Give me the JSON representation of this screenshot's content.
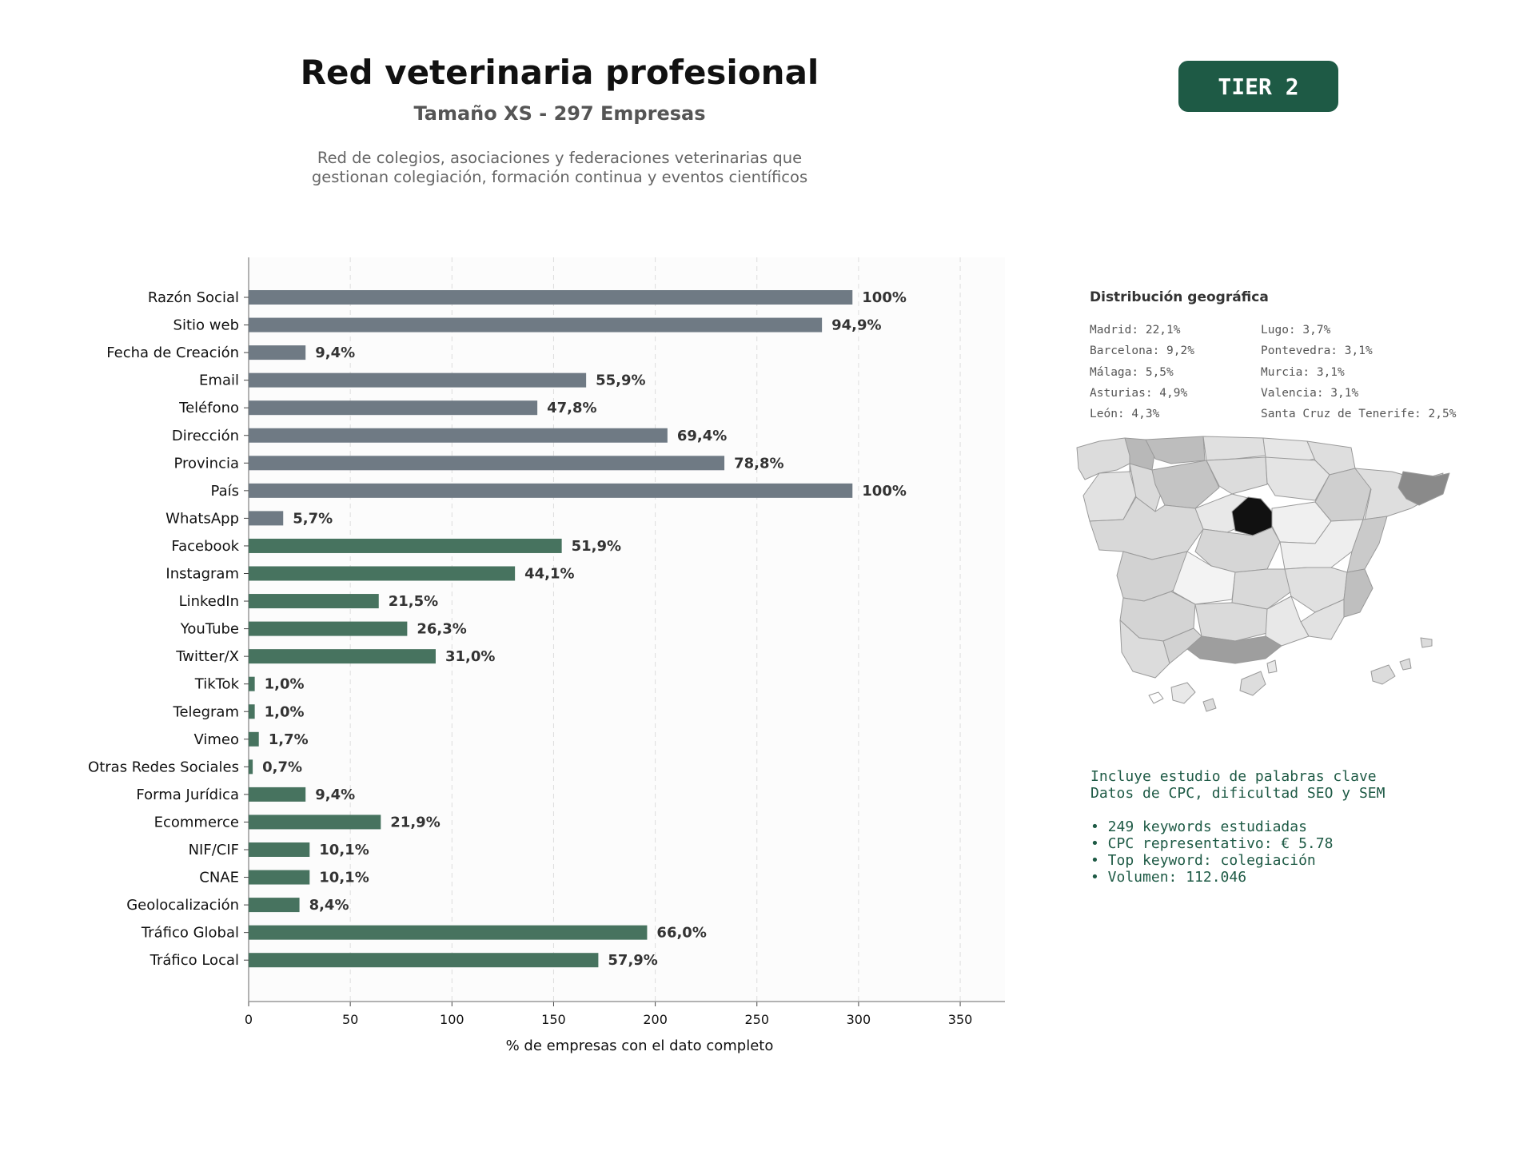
{
  "header": {
    "title": "Red veterinaria profesional",
    "subtitle": "Tamaño XS - 297 Empresas",
    "description_line1": "Red de colegios, asociaciones y federaciones veterinarias que",
    "description_line2": "gestionan colegiación, formación continua y eventos científicos",
    "tier_badge": "TIER 2"
  },
  "colors": {
    "gray_bar": "#6f7a84",
    "green_bar": "#47735f",
    "accent": "#1e5a45"
  },
  "chart_data": {
    "type": "bar",
    "orientation": "horizontal",
    "xlabel": "% de empresas con el dato completo",
    "xlim": [
      0,
      372
    ],
    "xticks": [
      0,
      50,
      100,
      150,
      200,
      250,
      300,
      350
    ],
    "grid": "vertical dashed",
    "categories": [
      "Razón Social",
      "Sitio web",
      "Fecha de Creación",
      "Email",
      "Teléfono",
      "Dirección",
      "Provincia",
      "País",
      "WhatsApp",
      "Facebook",
      "Instagram",
      "LinkedIn",
      "YouTube",
      "Twitter/X",
      "TikTok",
      "Telegram",
      "Vimeo",
      "Otras Redes Sociales",
      "Forma Jurídica",
      "Ecommerce",
      "NIF/CIF",
      "CNAE",
      "Geolocalización",
      "Tráfico Global",
      "Tráfico Local"
    ],
    "values": [
      297,
      282,
      28,
      166,
      142,
      206,
      234,
      297,
      17,
      154,
      131,
      64,
      78,
      92,
      3,
      3,
      5,
      2,
      28,
      65,
      30,
      30,
      25,
      196,
      172
    ],
    "labels": [
      "100%",
      "94,9%",
      "9,4%",
      "55,9%",
      "47,8%",
      "69,4%",
      "78,8%",
      "100%",
      "5,7%",
      "51,9%",
      "44,1%",
      "21,5%",
      "26,3%",
      "31,0%",
      "1,0%",
      "1,0%",
      "1,7%",
      "0,7%",
      "9,4%",
      "21,9%",
      "10,1%",
      "10,1%",
      "8,4%",
      "66,0%",
      "57,9%"
    ],
    "groups": [
      "gray",
      "gray",
      "gray",
      "gray",
      "gray",
      "gray",
      "gray",
      "gray",
      "gray",
      "green",
      "green",
      "green",
      "green",
      "green",
      "green",
      "green",
      "green",
      "green",
      "green",
      "green",
      "green",
      "green",
      "green",
      "green",
      "green"
    ]
  },
  "geo": {
    "title": "Distribución geográfica",
    "col1": [
      "Madrid: 22,1%",
      "Barcelona: 9,2%",
      "Málaga: 5,5%",
      "Asturias: 4,9%",
      "León: 4,3%"
    ],
    "col2": [
      "Lugo: 3,7%",
      "Pontevedra: 3,1%",
      "Murcia: 3,1%",
      "Valencia: 3,1%",
      "Santa Cruz de Tenerife: 2,5%"
    ]
  },
  "keywords": {
    "line1": "Incluye estudio de palabras clave",
    "line2": "Datos de CPC, dificultad SEO y SEM",
    "bullets": [
      "• 249 keywords estudiadas",
      "• CPC representativo: € 5.78",
      "• Top keyword: colegiación",
      "• Volumen: 112.046"
    ]
  }
}
